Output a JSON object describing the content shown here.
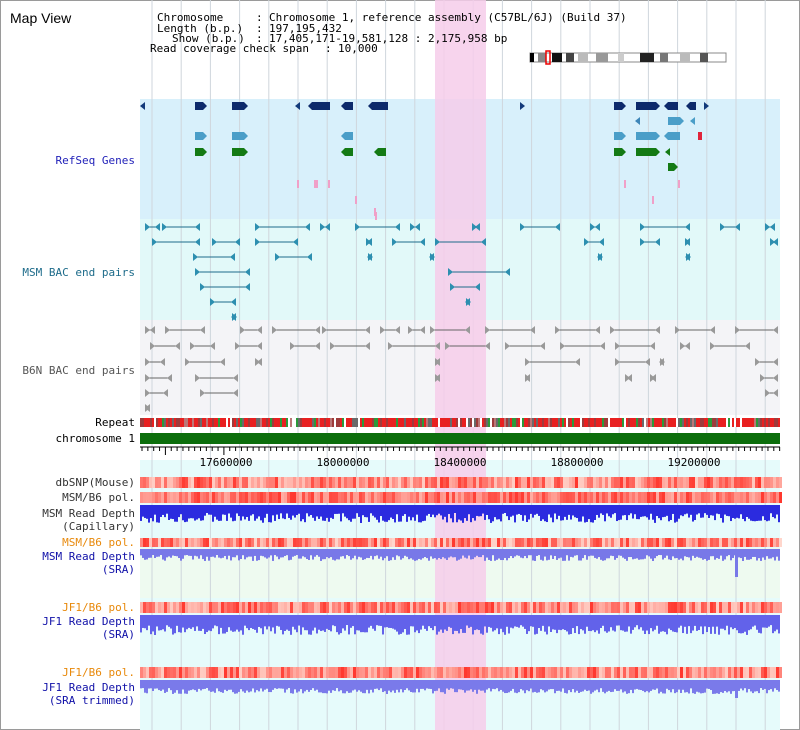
{
  "page": {
    "title": "Map View"
  },
  "info": {
    "chromosome_key": "Chromosome",
    "chromosome_val": "Chromosome 1, reference assembly (C57BL/6J) (Build 37)",
    "length_key": "Length (b.p.)",
    "length_val": "197,195,432",
    "show_key": "Show (b.p.)",
    "show_val": "17,405,171-19,581,128 : 2,175,958 bp",
    "span_key": "Read coverage check span",
    "span_val": "10,000"
  },
  "tracks": {
    "refseq": "RefSeq Genes",
    "msm_bac": "MSM BAC end pairs",
    "b6n_bac": "B6N BAC end pairs",
    "repeat": "Repeat",
    "chromosome": "chromosome 1",
    "dbsnp": "dbSNP(Mouse)",
    "msm_b6_pol": "MSM/B6 pol.",
    "msm_depth_cap_1": "MSM Read Depth",
    "msm_depth_cap_2": "(Capillary)",
    "msm_b6_pol_2": "MSM/B6 pol.",
    "msm_depth_sra_1": "MSM Read Depth",
    "msm_depth_sra_2": "(SRA)",
    "jf1_b6_pol_1": "JF1/B6 pol.",
    "jf1_depth_sra_1": "JF1 Read Depth",
    "jf1_depth_sra_2": "(SRA)",
    "jf1_b6_pol_2": "JF1/B6 pol.",
    "jf1_depth_trim_1": "JF1 Read Depth",
    "jf1_depth_trim_2": "(SRA trimmed)"
  },
  "axis": {
    "ticks": [
      "17600000",
      "18000000",
      "18400000",
      "18800000",
      "19200000"
    ]
  },
  "colors": {
    "refseq_label": "#1f1fb8",
    "msm_label": "#1d6b8a",
    "b6n_label": "#555555",
    "pol_label": "#e8890b",
    "depth_label": "#1010a8",
    "highlight": "#f6cdea",
    "chromosome_bar": "#0c6e0c"
  }
}
